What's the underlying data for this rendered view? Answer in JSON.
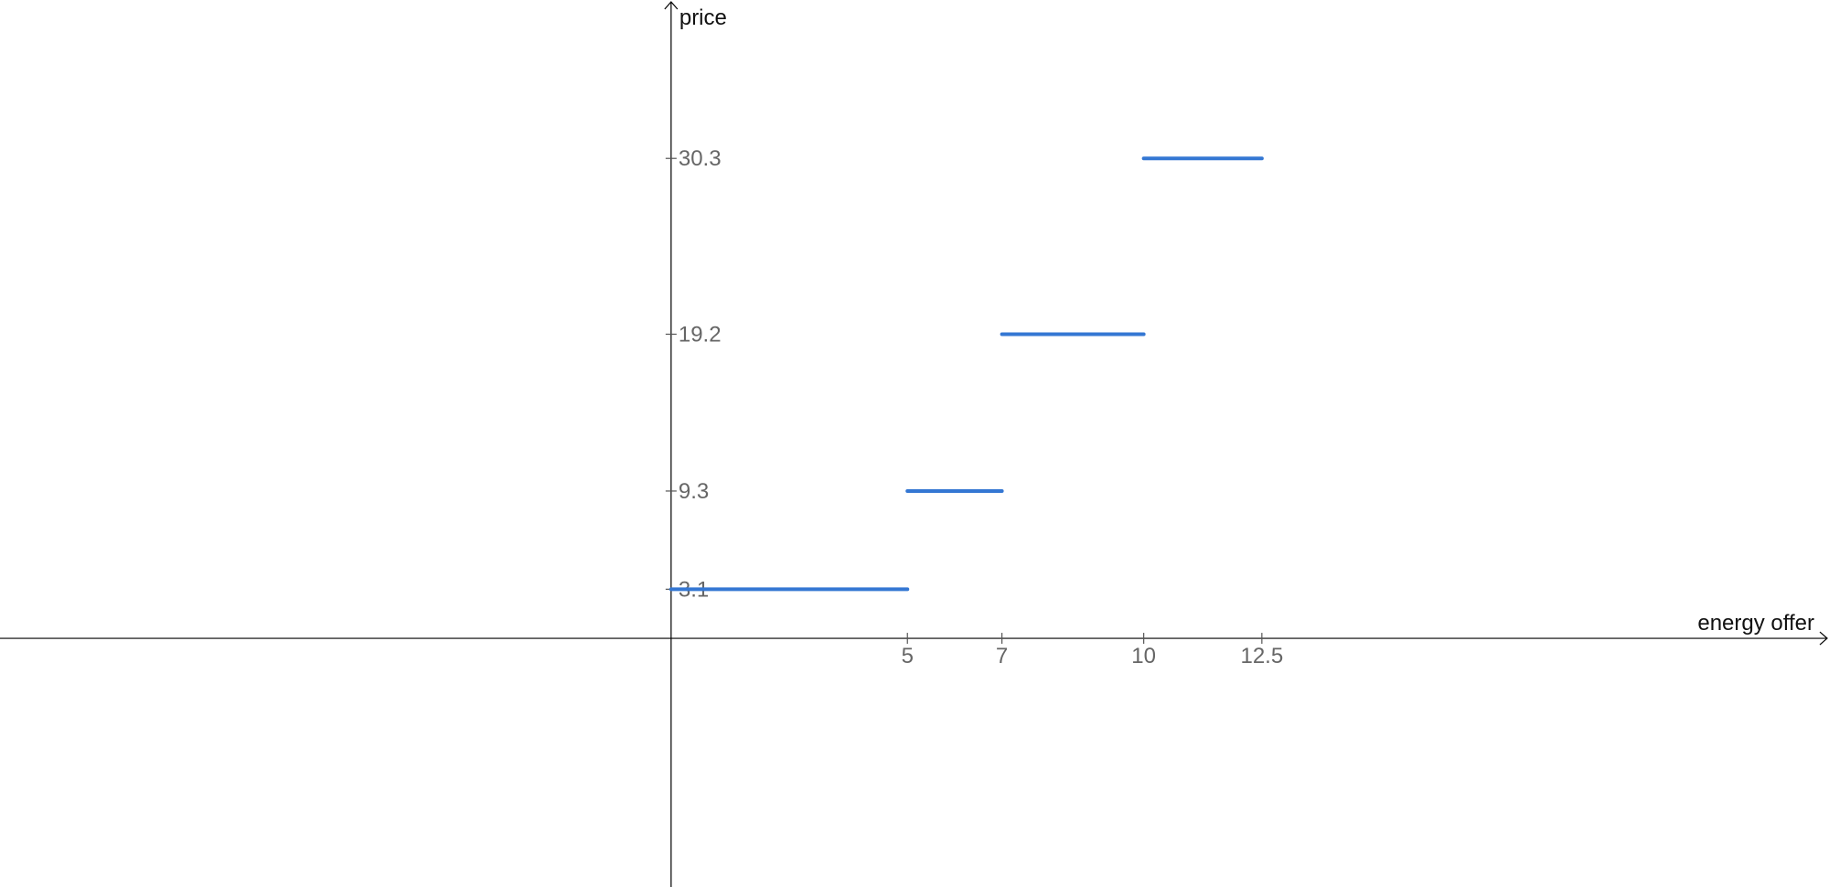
{
  "chart_data": {
    "type": "line",
    "subtype": "step-segments",
    "title": "",
    "xlabel": "energy offer",
    "ylabel": "price",
    "x_ticks": [
      "5",
      "7",
      "10",
      "12.5"
    ],
    "x_tick_values": [
      5,
      7,
      10,
      12.5
    ],
    "y_ticks": [
      "3.1",
      "9.3",
      "19.2",
      "30.3"
    ],
    "y_tick_values": [
      3.1,
      9.3,
      19.2,
      30.3
    ],
    "xlim": [
      -14.2,
      24.5
    ],
    "ylim": [
      -15.7,
      40.3
    ],
    "grid": false,
    "series": [
      {
        "color": "#3477d3",
        "segments": [
          {
            "x": [
              0,
              5
            ],
            "y": [
              3.1,
              3.1
            ]
          },
          {
            "x": [
              5,
              7
            ],
            "y": [
              9.3,
              9.3
            ]
          },
          {
            "x": [
              7,
              10
            ],
            "y": [
              19.2,
              19.2
            ]
          },
          {
            "x": [
              10,
              12.5
            ],
            "y": [
              30.3,
              30.3
            ]
          }
        ]
      }
    ]
  }
}
